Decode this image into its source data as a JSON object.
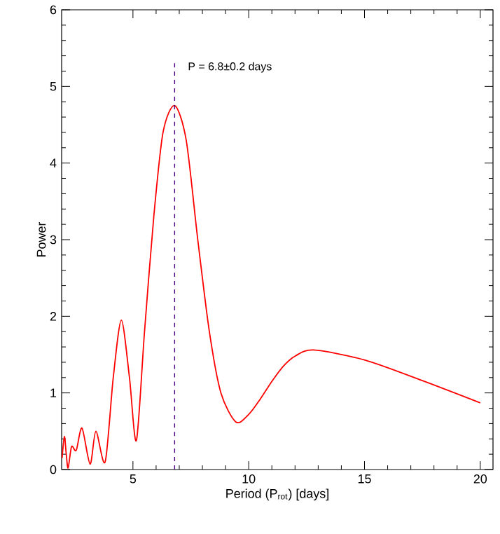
{
  "chart_data": {
    "type": "line",
    "xlabel": "Period (P$_{rot}$) [days]",
    "ylabel": "Power",
    "xlim": [
      1.92,
      20.55
    ],
    "ylim": [
      0,
      6
    ],
    "xticks": [
      5,
      10,
      15,
      20
    ],
    "yticks": [
      0,
      1,
      2,
      3,
      4,
      5,
      6
    ],
    "series": [
      {
        "color": "#ff0000",
        "x": [
          1.94,
          2.04,
          2.12,
          2.2,
          2.35,
          2.55,
          2.8,
          3.15,
          3.4,
          3.8,
          4.15,
          4.5,
          4.85,
          5.15,
          5.5,
          5.9,
          6.3,
          6.8,
          7.3,
          7.8,
          8.3,
          8.8,
          9.45,
          10.0,
          10.5,
          11.0,
          11.5,
          12.0,
          12.8,
          15,
          17.5,
          20
        ],
        "values": [
          0.15,
          0.43,
          0.2,
          0.02,
          0.3,
          0.25,
          0.54,
          0.07,
          0.5,
          0.1,
          1.2,
          1.95,
          1.2,
          0.38,
          1.8,
          3.3,
          4.4,
          4.75,
          4.3,
          3.0,
          1.8,
          1.0,
          0.62,
          0.72,
          0.92,
          1.15,
          1.35,
          1.48,
          1.56,
          1.43,
          1.16,
          0.87
        ]
      }
    ],
    "ref_lines": [
      {
        "axis": "x",
        "value": 6.8,
        "label": "P = 6.8±0.2 days",
        "color": "#4b0082",
        "line_style": "dashed"
      }
    ],
    "marker": "none",
    "line_style": "solid"
  }
}
